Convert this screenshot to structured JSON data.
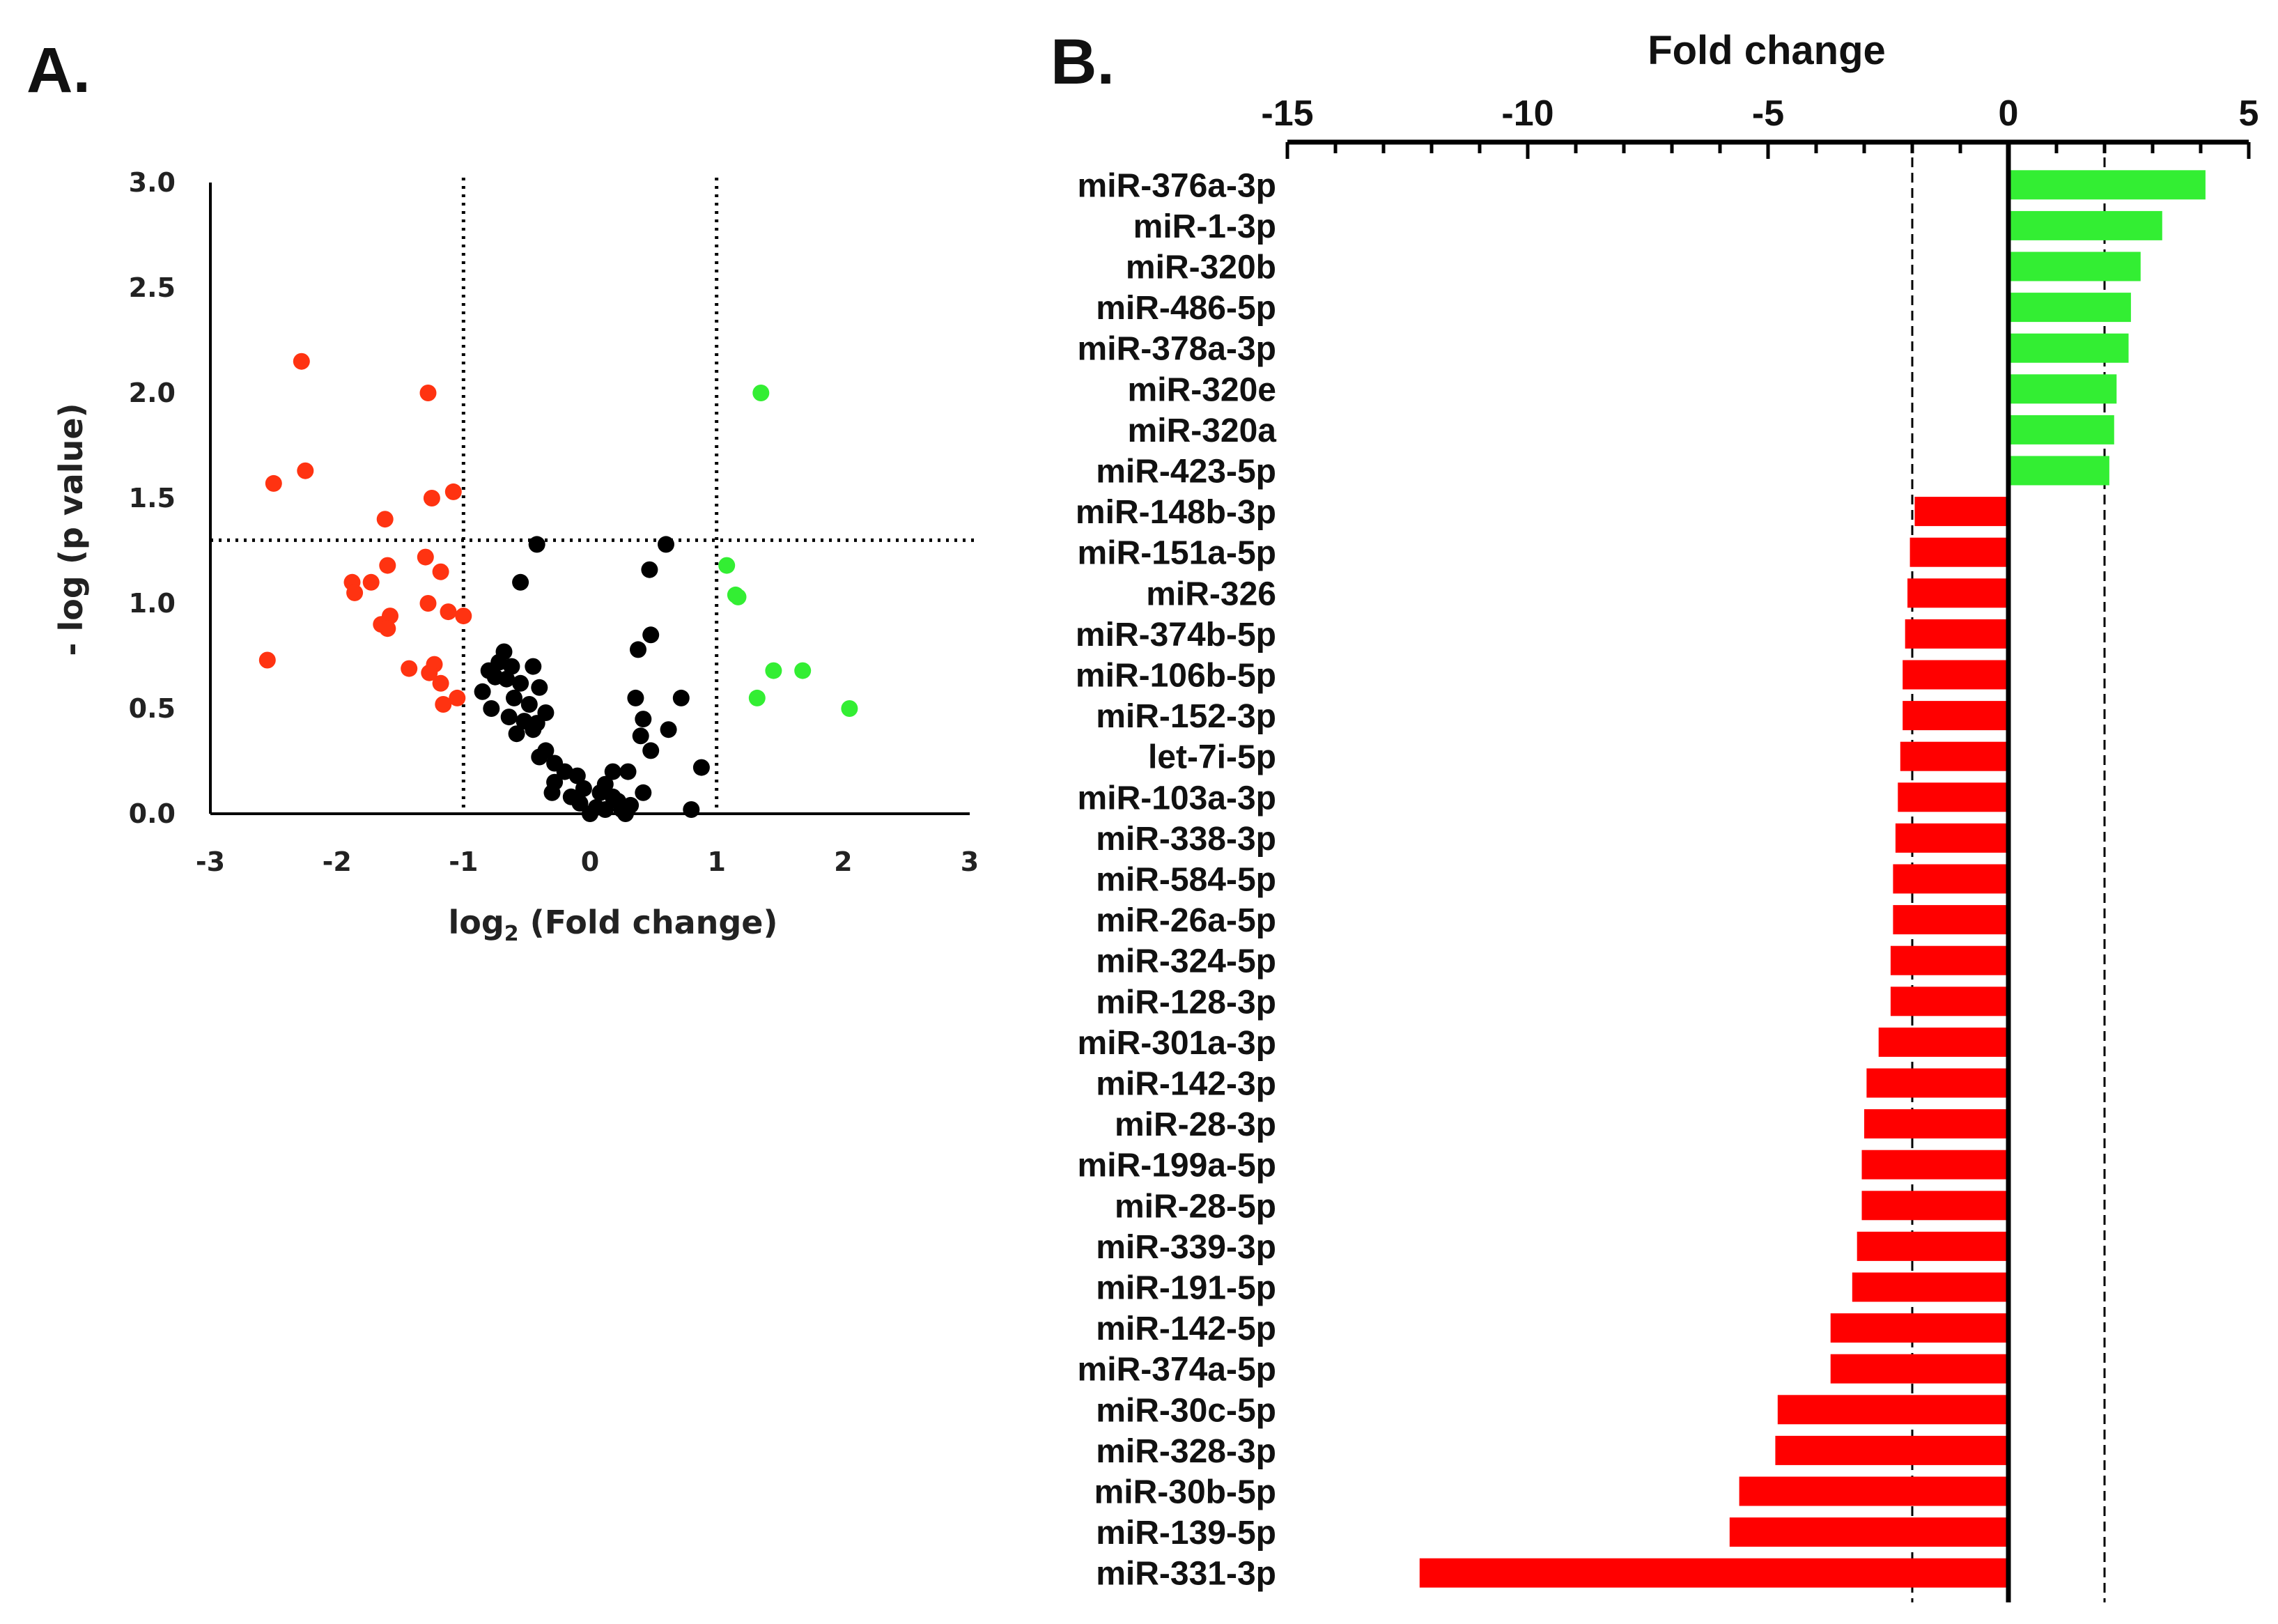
{
  "colors": {
    "up": "#33ee33",
    "down_bar": "#ff0000",
    "down_point": "#ff3311",
    "neutral": "#000000",
    "axis": "#000000"
  },
  "chart_data": [
    {
      "panel": "A.",
      "type": "scatter",
      "title": "",
      "xlabel_main": "log",
      "xlabel_sub": "2",
      "xlabel_rest": " (Fold change)",
      "ylabel": "- log (p value)",
      "xlim": [
        -3,
        3
      ],
      "ylim": [
        0,
        3
      ],
      "x_ticks": [
        "-3",
        "-2",
        "-1",
        "0",
        "1",
        "2",
        "3"
      ],
      "y_ticks": [
        "0.0",
        "0.5",
        "1.0",
        "1.5",
        "2.0",
        "2.5",
        "3.0"
      ],
      "threshold_lines": {
        "x": [
          -1,
          1
        ],
        "y": 1.3
      },
      "series": [
        {
          "group": "down",
          "color": "#ff3311",
          "points": [
            [
              -2.28,
              2.15
            ],
            [
              -1.28,
              2.0
            ],
            [
              -2.5,
              1.57
            ],
            [
              -2.25,
              1.63
            ],
            [
              -1.08,
              1.53
            ],
            [
              -1.25,
              1.5
            ],
            [
              -1.62,
              1.4
            ],
            [
              -1.3,
              1.22
            ],
            [
              -1.6,
              1.18
            ],
            [
              -1.18,
              1.15
            ],
            [
              -1.88,
              1.1
            ],
            [
              -1.73,
              1.1
            ],
            [
              -1.86,
              1.05
            ],
            [
              -1.28,
              1.0
            ],
            [
              -1.12,
              0.96
            ],
            [
              -1.0,
              0.94
            ],
            [
              -1.58,
              0.94
            ],
            [
              -1.65,
              0.9
            ],
            [
              -1.6,
              0.88
            ],
            [
              -2.55,
              0.73
            ],
            [
              -1.43,
              0.69
            ],
            [
              -1.23,
              0.71
            ],
            [
              -1.27,
              0.67
            ],
            [
              -1.18,
              0.62
            ],
            [
              -1.05,
              0.55
            ],
            [
              -1.16,
              0.52
            ]
          ]
        },
        {
          "group": "neutral",
          "color": "#000000",
          "points": [
            [
              -0.42,
              1.28
            ],
            [
              0.6,
              1.28
            ],
            [
              0.47,
              1.16
            ],
            [
              -0.55,
              1.1
            ],
            [
              0.48,
              0.85
            ],
            [
              0.38,
              0.78
            ],
            [
              -0.68,
              0.77
            ],
            [
              -0.72,
              0.72
            ],
            [
              -0.62,
              0.7
            ],
            [
              -0.8,
              0.68
            ],
            [
              -0.45,
              0.7
            ],
            [
              -0.75,
              0.65
            ],
            [
              -0.66,
              0.64
            ],
            [
              -0.55,
              0.62
            ],
            [
              -0.4,
              0.6
            ],
            [
              -0.85,
              0.58
            ],
            [
              -0.6,
              0.55
            ],
            [
              0.72,
              0.55
            ],
            [
              0.36,
              0.55
            ],
            [
              -0.78,
              0.5
            ],
            [
              -0.48,
              0.52
            ],
            [
              -0.35,
              0.48
            ],
            [
              -0.64,
              0.46
            ],
            [
              -0.52,
              0.44
            ],
            [
              -0.42,
              0.43
            ],
            [
              0.42,
              0.45
            ],
            [
              0.62,
              0.4
            ],
            [
              -0.58,
              0.38
            ],
            [
              -0.45,
              0.4
            ],
            [
              0.4,
              0.37
            ],
            [
              0.48,
              0.3
            ],
            [
              -0.35,
              0.3
            ],
            [
              -0.4,
              0.27
            ],
            [
              -0.28,
              0.24
            ],
            [
              0.88,
              0.22
            ],
            [
              0.18,
              0.2
            ],
            [
              -0.2,
              0.2
            ],
            [
              0.3,
              0.2
            ],
            [
              -0.1,
              0.18
            ],
            [
              -0.28,
              0.15
            ],
            [
              0.12,
              0.14
            ],
            [
              -0.05,
              0.12
            ],
            [
              -0.3,
              0.1
            ],
            [
              0.08,
              0.1
            ],
            [
              0.42,
              0.1
            ],
            [
              0.18,
              0.08
            ],
            [
              -0.15,
              0.08
            ],
            [
              0.22,
              0.06
            ],
            [
              -0.08,
              0.05
            ],
            [
              0.32,
              0.04
            ],
            [
              0.05,
              0.03
            ],
            [
              0.12,
              0.02
            ],
            [
              0.25,
              0.02
            ],
            [
              0.8,
              0.02
            ],
            [
              0.0,
              0.0
            ],
            [
              0.28,
              0.0
            ]
          ]
        },
        {
          "group": "up",
          "color": "#33ee33",
          "points": [
            [
              1.35,
              2.0
            ],
            [
              1.08,
              1.18
            ],
            [
              1.15,
              1.04
            ],
            [
              1.17,
              1.03
            ],
            [
              1.45,
              0.68
            ],
            [
              1.68,
              0.68
            ],
            [
              1.32,
              0.55
            ],
            [
              2.05,
              0.5
            ]
          ]
        }
      ]
    },
    {
      "panel": "B.",
      "type": "bar",
      "orientation": "horizontal",
      "title": "",
      "xlabel": "Fold change",
      "xlim": [
        -15,
        5
      ],
      "x_ticks": [
        "-15",
        "-10",
        "-5",
        "0",
        "5"
      ],
      "threshold_lines": [
        -2,
        2
      ],
      "categories": [
        "miR-376a-3p",
        "miR-1-3p",
        "miR-320b",
        "miR-486-5p",
        "miR-378a-3p",
        "miR-320e",
        "miR-320a",
        "miR-423-5p",
        "miR-148b-3p",
        "miR-151a-5p",
        "miR-326",
        "miR-374b-5p",
        "miR-106b-5p",
        "miR-152-3p",
        "let-7i-5p",
        "miR-103a-3p",
        "miR-338-3p",
        "miR-584-5p",
        "miR-26a-5p",
        "miR-324-5p",
        "miR-128-3p",
        "miR-301a-3p",
        "miR-142-3p",
        "miR-28-3p",
        "miR-199a-5p",
        "miR-28-5p",
        "miR-339-3p",
        "miR-191-5p",
        "miR-142-5p",
        "miR-374a-5p",
        "miR-30c-5p",
        "miR-328-3p",
        "miR-30b-5p",
        "miR-139-5p",
        "miR-331-3p"
      ],
      "values": [
        4.1,
        3.2,
        2.75,
        2.55,
        2.5,
        2.25,
        2.2,
        2.1,
        -1.95,
        -2.05,
        -2.1,
        -2.15,
        -2.2,
        -2.2,
        -2.25,
        -2.3,
        -2.35,
        -2.4,
        -2.4,
        -2.45,
        -2.45,
        -2.7,
        -2.95,
        -3.0,
        -3.05,
        -3.05,
        -3.15,
        -3.25,
        -3.7,
        -3.7,
        -4.8,
        -4.85,
        -5.6,
        -5.8,
        -12.25
      ]
    }
  ]
}
